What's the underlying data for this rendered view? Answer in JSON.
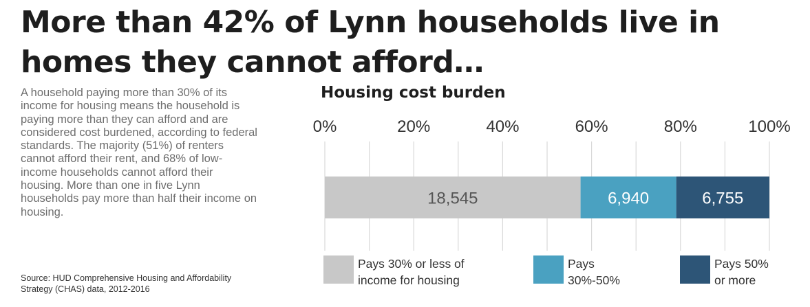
{
  "headline": "More than 42% of Lynn households live in homes they cannot afford…",
  "body_text": "A household paying more than 30% of its income for housing means the household is paying more than they can afford and are considered cost burdened, according to federal standards. The majority (51%) of renters cannot afford their rent, and 68% of low-income households cannot afford their housing. More than one in five Lynn households pay more than half their income on housing.",
  "source": "Source: HUD Comprehensive Housing and Affordability Strategy (CHAS) data, 2012-2016",
  "chart_data": {
    "type": "bar",
    "orientation": "horizontal",
    "stacked": true,
    "title": "Housing cost burden",
    "xlim": [
      0,
      100
    ],
    "xticks": [
      "0%",
      "20%",
      "40%",
      "60%",
      "80%",
      "100%"
    ],
    "grid": true,
    "legend_position": "bottom",
    "series": [
      {
        "name": "Pays 30% or less of income for housing",
        "value": 18545,
        "label": "18,545",
        "color": "#c8c8c8",
        "text_color": "#555555"
      },
      {
        "name": "Pays 30%-50%",
        "value": 6940,
        "label": "6,940",
        "color": "#4aa1c1",
        "text_color": "#ffffff"
      },
      {
        "name": "Pays 50% or more",
        "value": 6755,
        "label": "6,755",
        "color": "#2d5577",
        "text_color": "#ffffff"
      }
    ]
  },
  "legend": [
    {
      "line1": "Pays 30% or less of",
      "line2": "income for housing"
    },
    {
      "line1": "Pays",
      "line2": "30%-50%"
    },
    {
      "line1": "Pays 50%",
      "line2": "or more"
    }
  ]
}
